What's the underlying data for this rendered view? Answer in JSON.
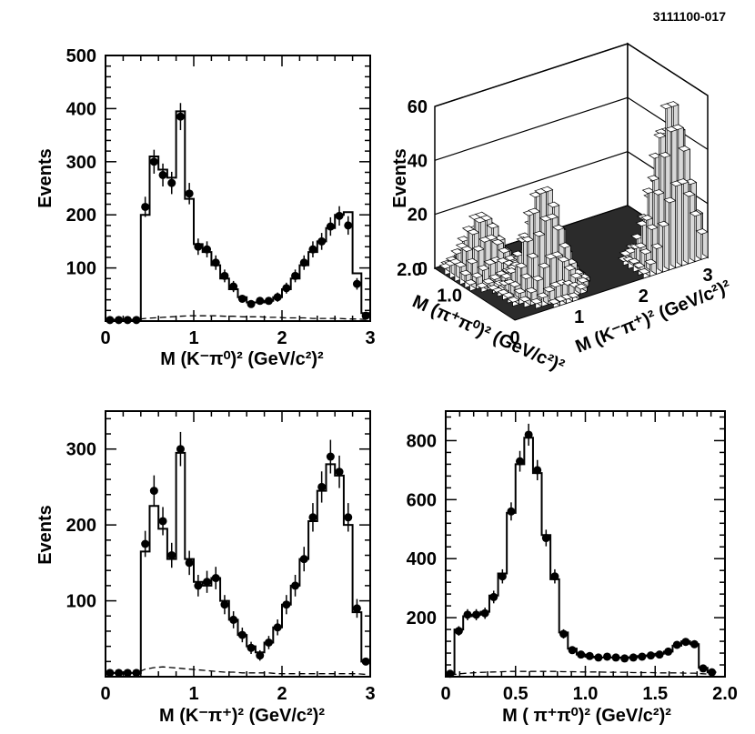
{
  "figure_id": "3111100-017",
  "chart_data": [
    {
      "panel": "top-left",
      "type": "scatter",
      "title": "",
      "xlabel": "M (K⁻π⁰)² (GeV/c²)²",
      "ylabel": "Events",
      "xlim": [
        0,
        3
      ],
      "ylim": [
        0,
        500
      ],
      "xticks": [
        "0",
        "1",
        "2",
        "3"
      ],
      "yticks": [
        "100",
        "200",
        "300",
        "400",
        "500"
      ],
      "bin_width": 0.1,
      "series": [
        {
          "name": "Data",
          "x": [
            0.05,
            0.15,
            0.25,
            0.35,
            0.45,
            0.55,
            0.65,
            0.75,
            0.85,
            0.95,
            1.05,
            1.15,
            1.25,
            1.35,
            1.45,
            1.55,
            1.65,
            1.75,
            1.85,
            1.95,
            2.05,
            2.15,
            2.25,
            2.35,
            2.45,
            2.55,
            2.65,
            2.75,
            2.85,
            2.95
          ],
          "values": [
            2,
            2,
            2,
            2,
            215,
            300,
            275,
            260,
            385,
            240,
            140,
            135,
            110,
            85,
            65,
            42,
            32,
            38,
            38,
            45,
            62,
            85,
            110,
            135,
            150,
            178,
            198,
            180,
            70,
            10
          ]
        },
        {
          "name": "Fit",
          "values": [
            2,
            2,
            2,
            2,
            200,
            310,
            285,
            270,
            395,
            230,
            145,
            130,
            105,
            80,
            60,
            45,
            35,
            35,
            38,
            45,
            60,
            80,
            105,
            130,
            150,
            175,
            200,
            205,
            90,
            15
          ]
        },
        {
          "name": "Background",
          "values": [
            3,
            3,
            3,
            3,
            5,
            6,
            7,
            8,
            9,
            10,
            10,
            10,
            10,
            9,
            9,
            8,
            8,
            8,
            7,
            7,
            6,
            6,
            6,
            5,
            5,
            5,
            5,
            4,
            4,
            3
          ]
        }
      ]
    },
    {
      "panel": "top-right",
      "type": "lego3d",
      "title": "",
      "xlabel": "M (K⁻π⁺)² (GeV/c²)²",
      "ylabel": "M (π⁺π⁰)² (GeV/c²)²",
      "zlabel": "Events",
      "xlim": [
        0,
        3
      ],
      "ylim": [
        0,
        2
      ],
      "zlim": [
        0,
        60
      ],
      "xticks": [
        "0",
        "1",
        "2",
        "3"
      ],
      "yticks": [
        "1.0",
        "2.0"
      ],
      "zticks": [
        "0",
        "20",
        "40",
        "60"
      ],
      "peaks": [
        {
          "x": 2.6,
          "y": 0.3,
          "height": 58
        },
        {
          "x": 0.8,
          "y": 0.6,
          "height": 38
        },
        {
          "x": 0.4,
          "y": 1.5,
          "height": 22
        }
      ]
    },
    {
      "panel": "bottom-left",
      "type": "scatter",
      "title": "",
      "xlabel": "M (K⁻π⁺)² (GeV/c²)²",
      "ylabel": "Events",
      "xlim": [
        0,
        3
      ],
      "ylim": [
        0,
        350
      ],
      "xticks": [
        "0",
        "1",
        "2",
        "3"
      ],
      "yticks": [
        "100",
        "200",
        "300"
      ],
      "bin_width": 0.1,
      "series": [
        {
          "name": "Data",
          "x": [
            0.05,
            0.15,
            0.25,
            0.35,
            0.45,
            0.55,
            0.65,
            0.75,
            0.85,
            0.95,
            1.05,
            1.15,
            1.25,
            1.35,
            1.45,
            1.55,
            1.65,
            1.75,
            1.85,
            1.95,
            2.05,
            2.15,
            2.25,
            2.35,
            2.45,
            2.55,
            2.65,
            2.75,
            2.85,
            2.95
          ],
          "values": [
            5,
            5,
            5,
            5,
            175,
            245,
            205,
            160,
            300,
            150,
            120,
            125,
            130,
            95,
            75,
            55,
            38,
            28,
            45,
            65,
            95,
            120,
            155,
            210,
            250,
            290,
            270,
            210,
            90,
            20
          ]
        },
        {
          "name": "Fit",
          "values": [
            5,
            5,
            5,
            5,
            165,
            225,
            195,
            155,
            295,
            155,
            125,
            120,
            130,
            100,
            75,
            55,
            40,
            32,
            45,
            65,
            95,
            120,
            155,
            205,
            245,
            280,
            265,
            200,
            85,
            20
          ]
        },
        {
          "name": "Background",
          "values": [
            5,
            5,
            5,
            5,
            10,
            12,
            13,
            12,
            11,
            10,
            9,
            8,
            7,
            6,
            6,
            5,
            5,
            5,
            5,
            4,
            4,
            4,
            4,
            4,
            4,
            4,
            4,
            4,
            4,
            3
          ]
        }
      ]
    },
    {
      "panel": "bottom-right",
      "type": "scatter",
      "title": "",
      "xlabel": "M ( π⁺π⁰)² (GeV/c²)²",
      "ylabel": "",
      "xlim": [
        0,
        2.0
      ],
      "ylim": [
        0,
        900
      ],
      "xticks": [
        "0",
        "0.5",
        "1.0",
        "1.5",
        "2.0"
      ],
      "yticks": [
        "200",
        "400",
        "600",
        "800"
      ],
      "bin_width": 0.0625,
      "series": [
        {
          "name": "Data",
          "x": [
            0.03125,
            0.09375,
            0.15625,
            0.21875,
            0.28125,
            0.34375,
            0.40625,
            0.46875,
            0.53125,
            0.59375,
            0.65625,
            0.71875,
            0.78125,
            0.84375,
            0.90625,
            0.96875,
            1.03125,
            1.09375,
            1.15625,
            1.21875,
            1.28125,
            1.34375,
            1.40625,
            1.46875,
            1.53125,
            1.59375,
            1.65625,
            1.71875,
            1.78125,
            1.84375,
            1.90625
          ],
          "values": [
            10,
            155,
            210,
            210,
            215,
            270,
            340,
            560,
            730,
            820,
            700,
            470,
            340,
            145,
            90,
            75,
            70,
            65,
            68,
            65,
            62,
            65,
            68,
            72,
            75,
            85,
            108,
            118,
            110,
            28,
            15
          ]
        },
        {
          "name": "Fit",
          "values": [
            10,
            160,
            205,
            210,
            220,
            275,
            350,
            555,
            720,
            810,
            690,
            480,
            330,
            150,
            95,
            75,
            68,
            65,
            65,
            65,
            64,
            66,
            70,
            72,
            78,
            85,
            105,
            120,
            110,
            30,
            15
          ]
        },
        {
          "name": "Background",
          "values": [
            5,
            10,
            12,
            14,
            15,
            16,
            17,
            18,
            18,
            18,
            18,
            18,
            18,
            17,
            17,
            16,
            16,
            16,
            15,
            15,
            15,
            14,
            14,
            14,
            13,
            13,
            13,
            12,
            12,
            10,
            8
          ]
        }
      ]
    }
  ]
}
